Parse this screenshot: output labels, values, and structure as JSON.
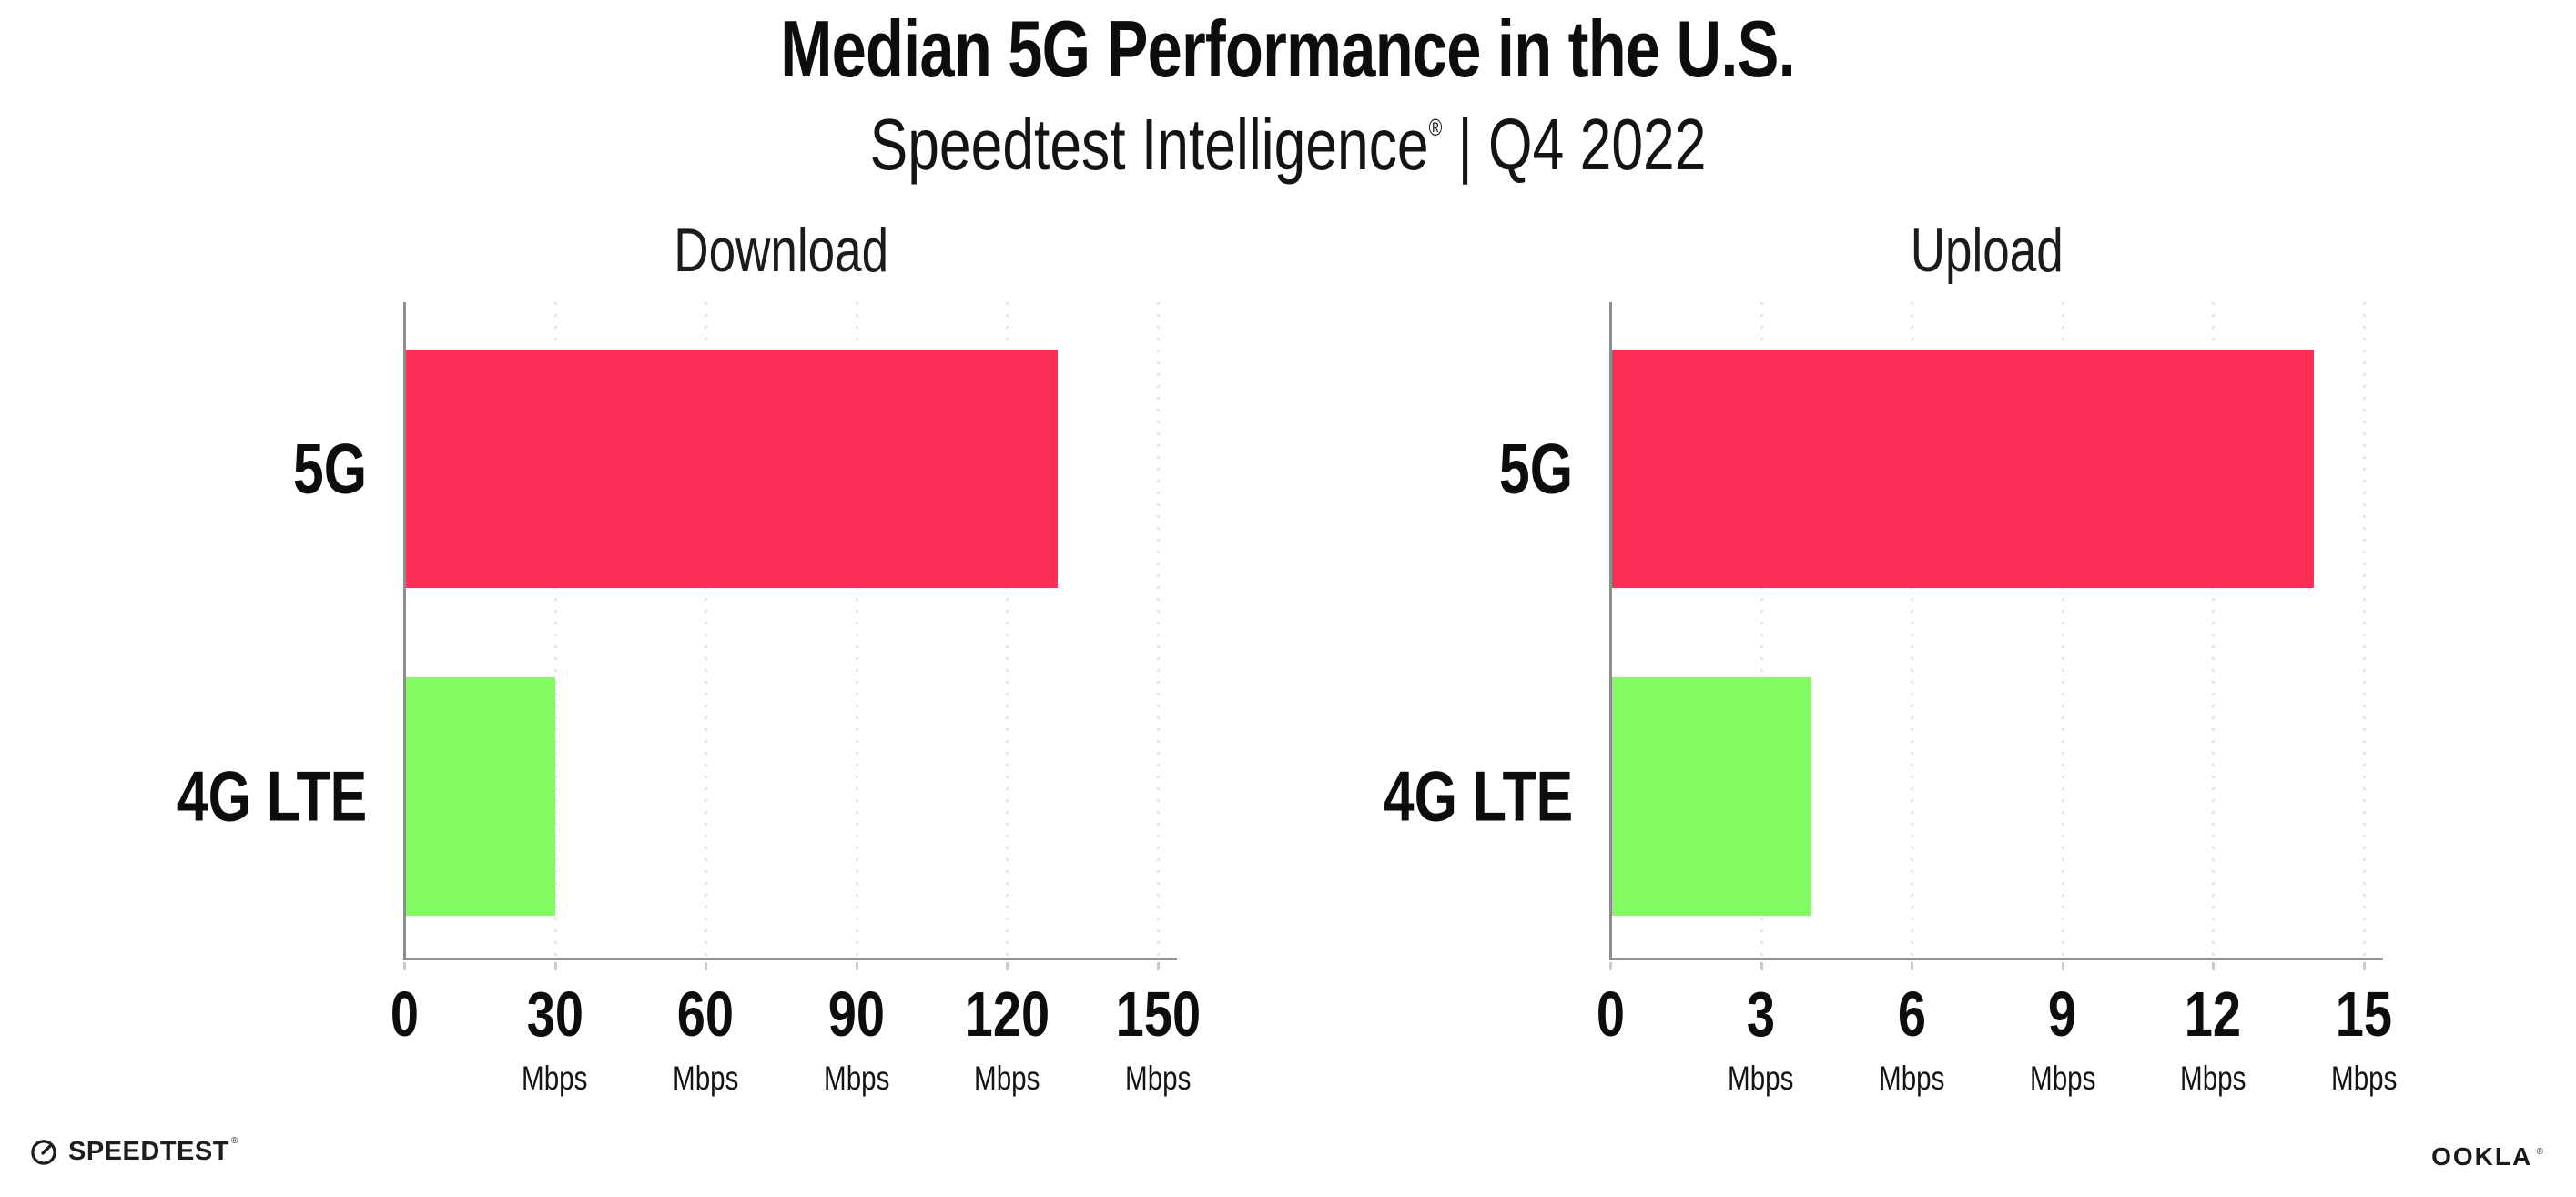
{
  "header": {
    "title": "Median 5G Performance in the U.S.",
    "subtitle_brand": "Speedtest Intelligence",
    "subtitle_reg": "®",
    "subtitle_rest": "| Q4 2022"
  },
  "colors": {
    "bar_5g": "#fc2e56",
    "bar_4g_lte": "#81fb61",
    "axis": "#8d8d8d",
    "gridline_dots": "#e4e4ee",
    "text": "#111111"
  },
  "chart_data": [
    {
      "type": "bar",
      "orientation": "horizontal",
      "title": "Download",
      "categories": [
        "5G",
        "4G LTE"
      ],
      "values": [
        130,
        30
      ],
      "unit": "Mbps",
      "xlim": [
        0,
        150
      ],
      "ticks": [
        0,
        30,
        60,
        90,
        120,
        150
      ],
      "tick_labels": [
        "0",
        "30",
        "60",
        "90",
        "120",
        "150"
      ],
      "grid": "dotted-vertical",
      "legend": "none",
      "bar_colors": [
        "#fc2e56",
        "#81fb61"
      ]
    },
    {
      "type": "bar",
      "orientation": "horizontal",
      "title": "Upload",
      "categories": [
        "5G",
        "4G LTE"
      ],
      "values": [
        14,
        4
      ],
      "unit": "Mbps",
      "xlim": [
        0,
        15
      ],
      "ticks": [
        0,
        3,
        6,
        9,
        12,
        15
      ],
      "tick_labels": [
        "0",
        "3",
        "6",
        "9",
        "12",
        "15"
      ],
      "grid": "dotted-vertical",
      "legend": "none",
      "bar_colors": [
        "#fc2e56",
        "#81fb61"
      ]
    }
  ],
  "footer": {
    "speedtest_label": "SPEEDTEST",
    "speedtest_reg": "®",
    "ookla_label": "OOKLA",
    "ookla_reg": "®"
  }
}
